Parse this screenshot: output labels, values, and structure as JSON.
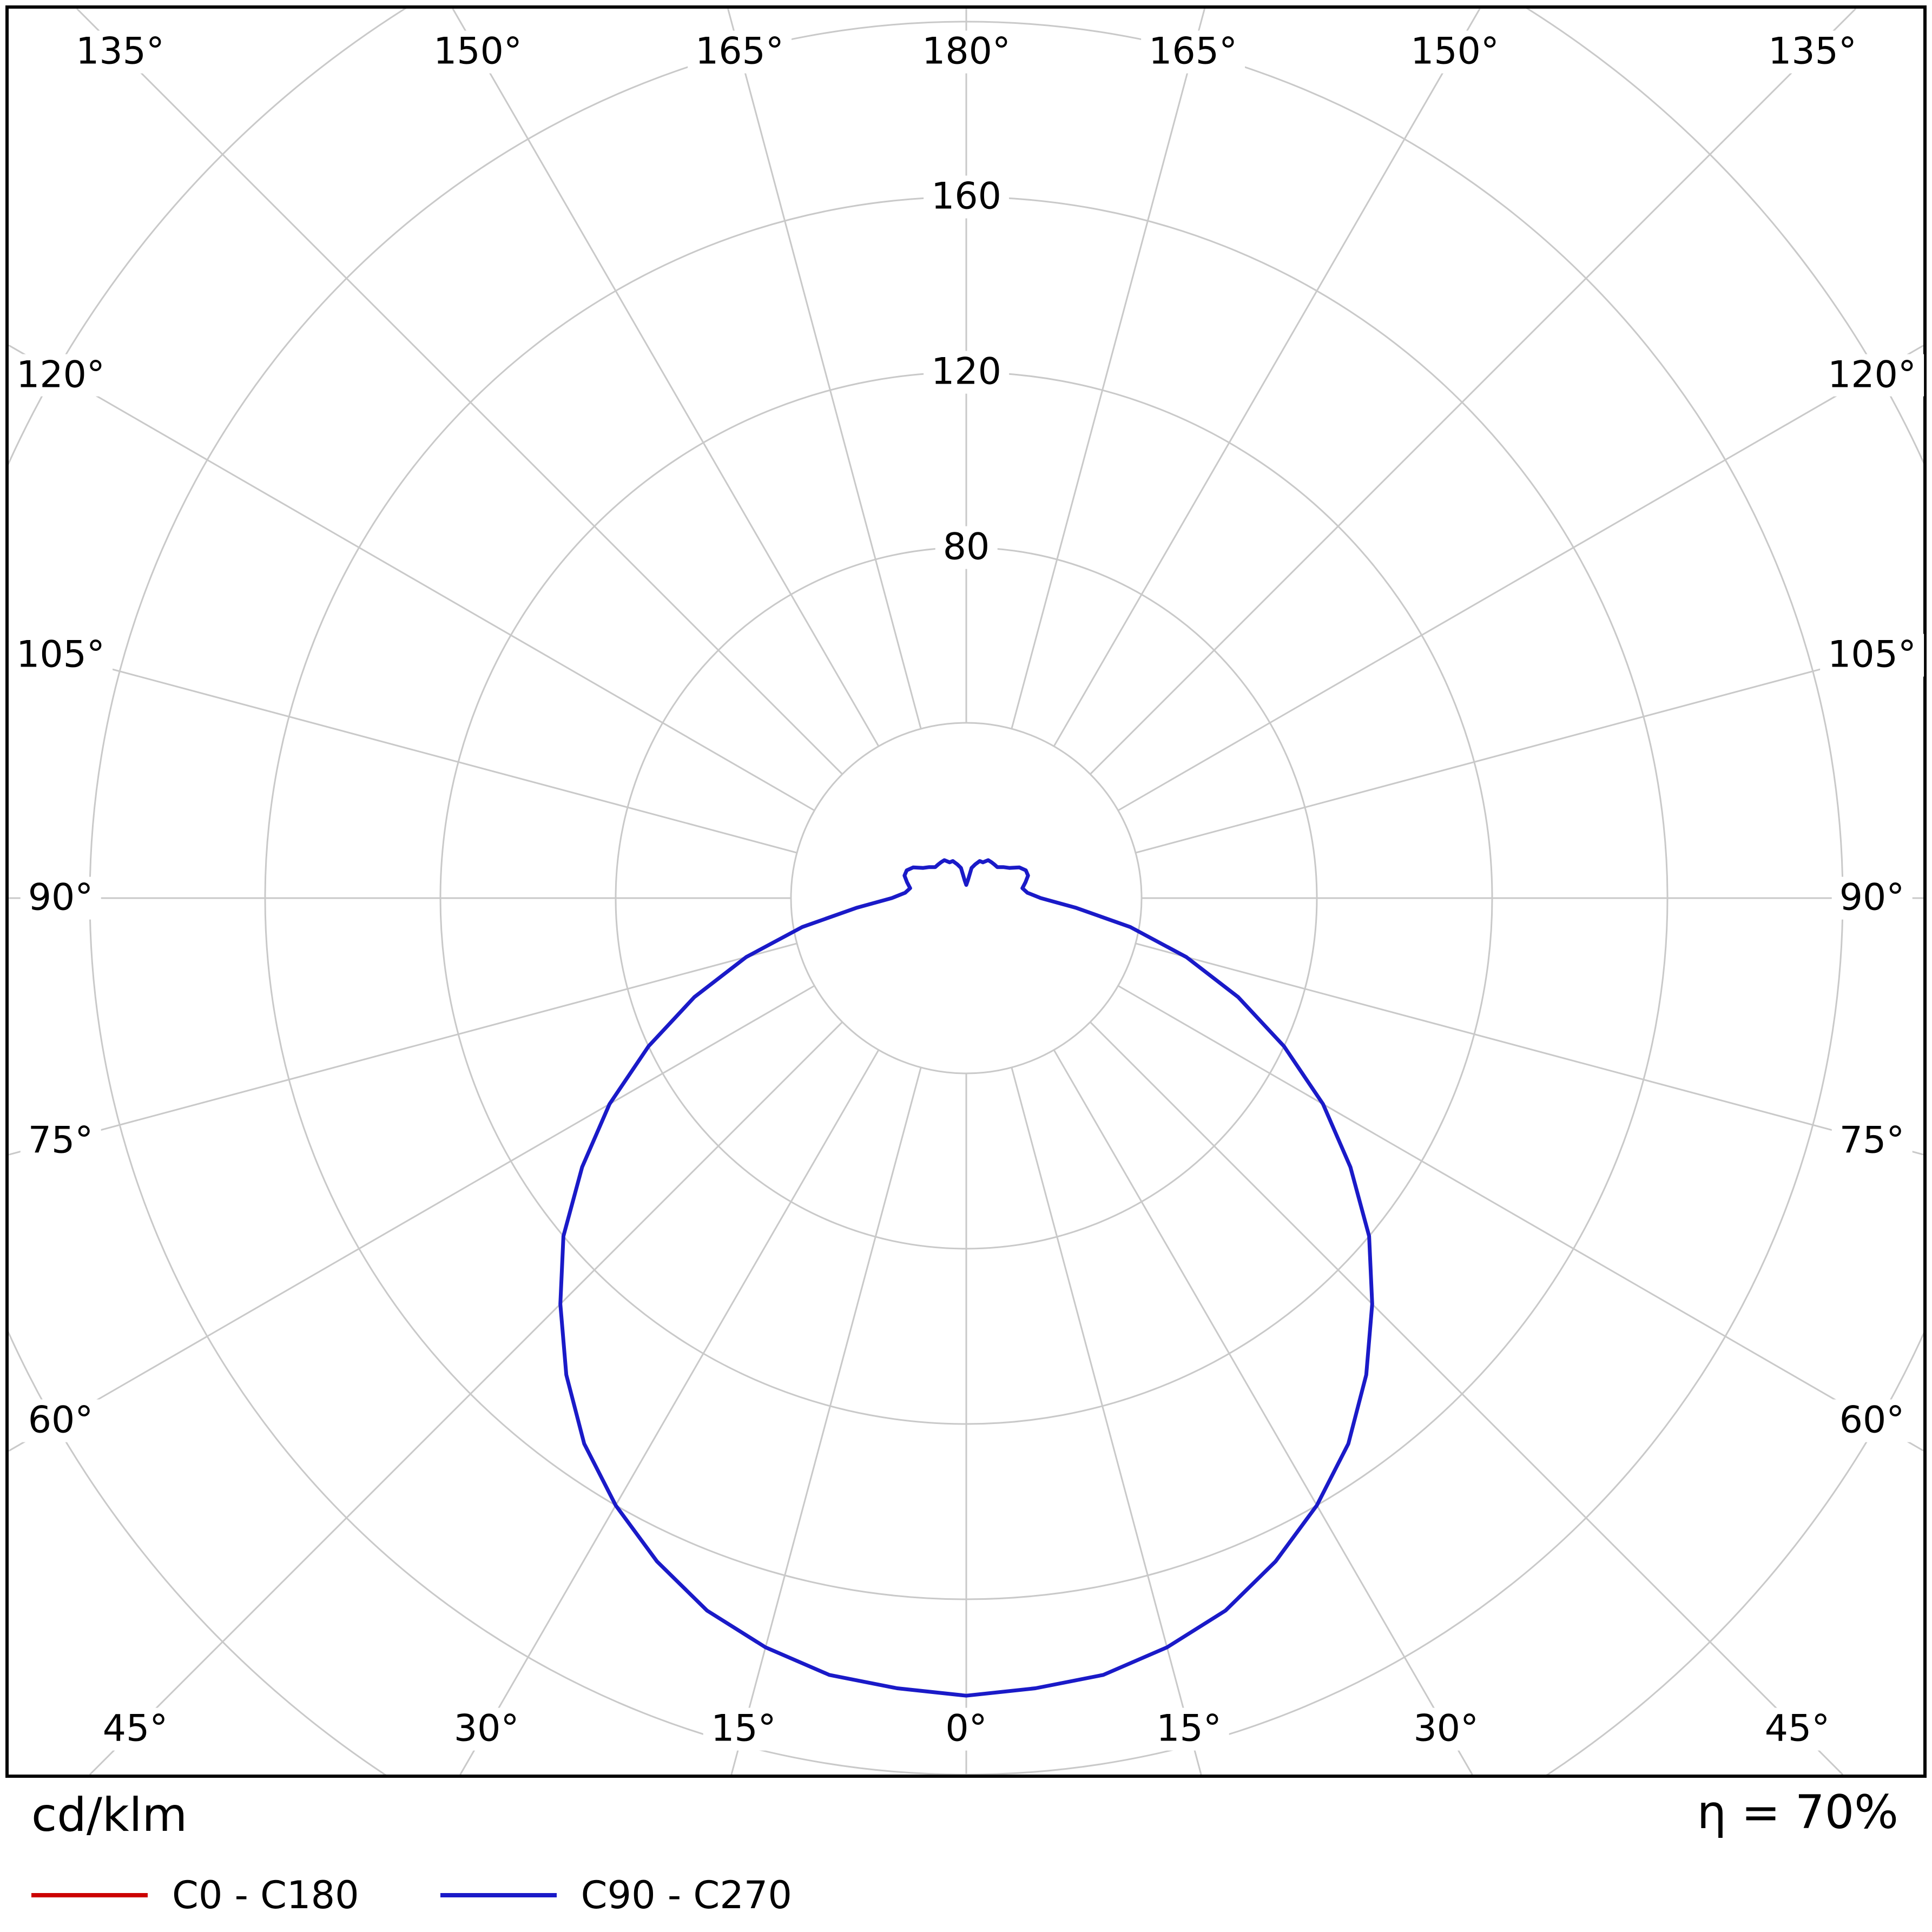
{
  "page": {
    "background": "#ffffff"
  },
  "chart_data": {
    "type": "polar",
    "description": "Photometric polar luminous intensity distribution curve (luminaire light distribution)",
    "units_label": "cd/klm",
    "efficiency_label": "η = 70%",
    "angle_unit": "degrees",
    "angle_zero": "bottom (0° nadir), increasing to 180° at top on both sides",
    "angle_gridlines_deg": [
      0,
      15,
      30,
      45,
      60,
      75,
      90,
      105,
      120,
      135,
      150,
      165,
      180
    ],
    "radial_rings_cdklm": [
      40,
      80,
      120,
      160,
      200,
      240
    ],
    "radial_tick_labels": [
      80,
      120,
      160
    ],
    "radial_axis_max": 200,
    "grid_on": true,
    "grid_color": "#c9c9c9",
    "frame_color": "#000000",
    "gamma_deg": [
      0,
      5,
      10,
      15,
      20,
      25,
      30,
      35,
      40,
      45,
      50,
      55,
      60,
      65,
      70,
      75,
      80,
      85,
      90,
      95,
      100,
      105,
      110,
      115,
      120,
      125,
      130,
      135,
      140,
      145,
      150,
      155,
      160,
      165,
      170,
      175,
      180
    ],
    "series": [
      {
        "name": "C0 - C180",
        "color": "#cc0000",
        "values": [
          182,
          181,
          180,
          177,
          173,
          167,
          160,
          152,
          142,
          131,
          120,
          107,
          94,
          80,
          66,
          52,
          38,
          25,
          17,
          14,
          13,
          14,
          15,
          15,
          14,
          12,
          11,
          10,
          10,
          10,
          10,
          9,
          9,
          8,
          7,
          4,
          3
        ]
      },
      {
        "name": "C90 - C270",
        "color": "#1a1ac8",
        "values": [
          182,
          181,
          180,
          177,
          173,
          167,
          160,
          152,
          142,
          131,
          120,
          107,
          94,
          80,
          66,
          52,
          38,
          25,
          17,
          14,
          13,
          14,
          15,
          15,
          14,
          12,
          11,
          10,
          10,
          10,
          10,
          9,
          9,
          8,
          7,
          4,
          3
        ]
      }
    ],
    "legend_position": "bottom-left"
  }
}
